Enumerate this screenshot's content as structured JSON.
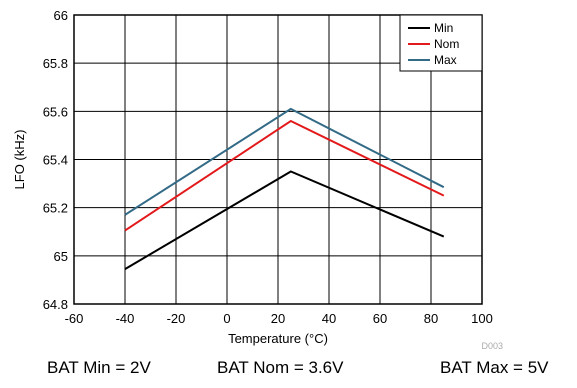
{
  "chart_data": {
    "type": "line",
    "xlabel": "Temperature (°C)",
    "ylabel": "LFO (kHz)",
    "xlim": [
      -60,
      100
    ],
    "ylim": [
      64.8,
      66
    ],
    "x_ticks": [
      "-60",
      "-40",
      "-20",
      "0",
      "20",
      "40",
      "60",
      "80",
      "100"
    ],
    "y_ticks": [
      "64.8",
      "65",
      "65.2",
      "65.4",
      "65.6",
      "65.8",
      "66"
    ],
    "grid": true,
    "legend_position": "top-right",
    "series": [
      {
        "name": "Min",
        "color": "#000000",
        "x": [
          -40,
          25,
          85
        ],
        "y": [
          64.945,
          65.35,
          65.08
        ]
      },
      {
        "name": "Nom",
        "color": "#e31a1c",
        "x": [
          -40,
          25,
          85
        ],
        "y": [
          65.105,
          65.56,
          65.25
        ]
      },
      {
        "name": "Max",
        "color": "#336b87",
        "x": [
          -40,
          25,
          85
        ],
        "y": [
          65.17,
          65.61,
          65.285
        ]
      }
    ],
    "footnote": "D003"
  },
  "captions": [
    "BAT Min = 2V",
    "BAT Nom = 3.6V",
    "BAT Max = 5V"
  ]
}
